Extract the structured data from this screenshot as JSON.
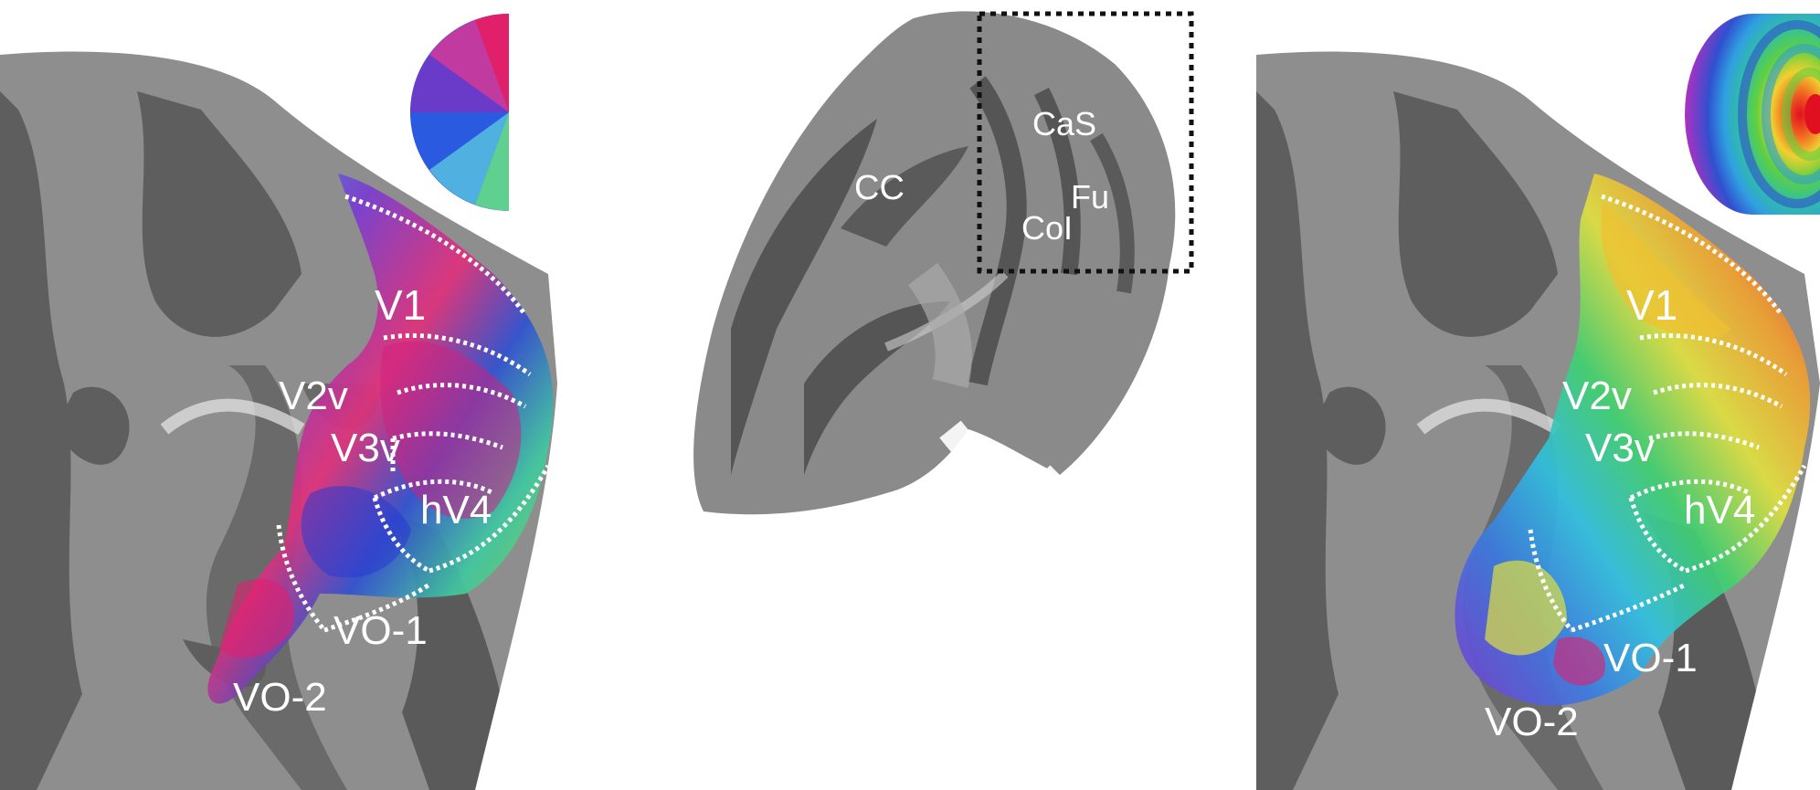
{
  "left_panel": {
    "labels": {
      "v1": "V1",
      "v2v": "V2v",
      "v3v": "V3v",
      "hv4": "hV4",
      "vo1": "VO-1",
      "vo2": "VO-2"
    },
    "legend": "polar-angle-half-wheel"
  },
  "middle_panel": {
    "labels": {
      "cc": "CC",
      "cas": "CaS",
      "fu": "Fu",
      "col": "CoI"
    }
  },
  "right_panel": {
    "labels": {
      "v1": "V1",
      "v2v": "V2v",
      "v3v": "V3v",
      "hv4": "hV4",
      "vo1": "VO-1",
      "vo2": "VO-2"
    },
    "legend": "eccentricity-target-wheel"
  },
  "colors": {
    "gyrus": "#8e8e8e",
    "sulcus": "#5e5e5e",
    "label": "#ffffff",
    "roi_border": "#ffffff",
    "background": "#ffffff"
  }
}
